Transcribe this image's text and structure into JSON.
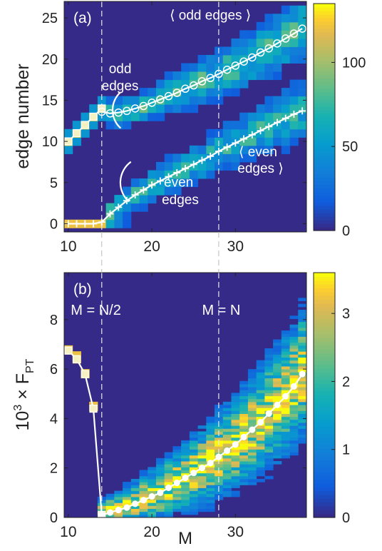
{
  "chart_data": [
    {
      "type": "heatmap",
      "panel_label": "(a)",
      "xlabel": "",
      "ylabel": "edge number",
      "xlim": [
        9.5,
        38.5
      ],
      "ylim": [
        -1,
        27
      ],
      "xticks": [
        10,
        20,
        30
      ],
      "yticks": [
        0,
        5,
        10,
        15,
        20,
        25
      ],
      "colorbar": {
        "range": [
          0,
          135
        ],
        "ticks": [
          0,
          50,
          100
        ]
      },
      "vlines": [
        14,
        28
      ],
      "annotations": [
        {
          "text": "odd",
          "x": 16.2,
          "y": 18.3
        },
        {
          "text": "edges",
          "x": 16.2,
          "y": 16.2
        },
        {
          "text": "⟨ odd edges ⟩",
          "x": 27,
          "y": 24.8
        },
        {
          "text": "⟨ even",
          "x": 32.7,
          "y": 8.2
        },
        {
          "text": "edges ⟩",
          "x": 33,
          "y": 6.2
        },
        {
          "text": "even",
          "x": 23.2,
          "y": 4.5
        },
        {
          "text": "edges",
          "x": 23.4,
          "y": 2.4
        }
      ],
      "series": [
        {
          "name": "",
          "marker": "square",
          "x": [
            10,
            11,
            12,
            13,
            14
          ],
          "y": [
            10,
            11,
            12,
            13,
            14
          ]
        },
        {
          "name": "",
          "marker": "circle",
          "x": [
            14,
            15,
            16,
            17,
            18,
            19,
            20,
            21,
            22,
            23,
            24,
            25,
            26,
            27,
            28,
            29,
            30,
            31,
            32,
            33,
            34,
            35,
            36,
            37,
            38
          ],
          "y": [
            13.6,
            13.4,
            13.5,
            13.7,
            14.0,
            14.3,
            14.7,
            15.1,
            15.5,
            15.9,
            16.4,
            16.8,
            17.3,
            17.7,
            18.2,
            18.7,
            19.2,
            19.7,
            20.2,
            20.8,
            21.3,
            21.9,
            22.5,
            23.1,
            23.7
          ]
        },
        {
          "name": "",
          "marker": "plus",
          "x": [
            10,
            11,
            12,
            13,
            14,
            15,
            16,
            17,
            18,
            19,
            20,
            21,
            22,
            23,
            24,
            25,
            26,
            27,
            28,
            29,
            30,
            31,
            32,
            33,
            34,
            35,
            36,
            37,
            38
          ],
          "y": [
            0,
            0,
            0,
            0,
            0.2,
            1.2,
            2.0,
            2.8,
            3.5,
            4.1,
            4.7,
            5.2,
            5.7,
            6.2,
            6.7,
            7.2,
            7.7,
            8.2,
            8.8,
            9.3,
            9.8,
            10.3,
            10.8,
            11.3,
            11.8,
            12.3,
            12.8,
            13.3,
            13.7
          ]
        }
      ]
    },
    {
      "type": "heatmap",
      "panel_label": "(b)",
      "xlabel": "M",
      "ylabel_parts": [
        "10",
        "3",
        " × F",
        "PT"
      ],
      "xlim": [
        9.5,
        38.5
      ],
      "ylim": [
        0,
        9.9
      ],
      "xticks": [
        10,
        20,
        30
      ],
      "yticks": [
        0,
        2,
        4,
        6,
        8
      ],
      "colorbar": {
        "range": [
          0,
          3.6
        ],
        "ticks": [
          0,
          1,
          2,
          3
        ]
      },
      "vlines": [
        14,
        28
      ],
      "annotations": [
        {
          "text": "M = N/2",
          "x": 13.3,
          "y": 8.2
        },
        {
          "text": "M = N",
          "x": 28.3,
          "y": 8.2
        }
      ],
      "series": [
        {
          "name": "",
          "marker": "square",
          "x": [
            10,
            11,
            12,
            13,
            14
          ],
          "y": [
            6.75,
            6.4,
            5.8,
            4.4,
            0.1
          ]
        },
        {
          "name": "",
          "marker": "circle",
          "x": [
            14,
            15,
            16,
            17,
            18,
            19,
            20,
            21,
            22,
            23,
            24,
            25,
            26,
            27,
            28,
            29,
            30,
            31,
            32,
            33,
            34,
            35,
            36,
            37,
            38
          ],
          "y": [
            0.1,
            0.2,
            0.3,
            0.4,
            0.55,
            0.7,
            0.85,
            1.0,
            1.2,
            1.4,
            1.6,
            1.8,
            2.0,
            2.2,
            2.45,
            2.7,
            2.95,
            3.25,
            3.55,
            3.85,
            4.2,
            4.55,
            4.9,
            5.3,
            5.8
          ]
        }
      ]
    }
  ]
}
